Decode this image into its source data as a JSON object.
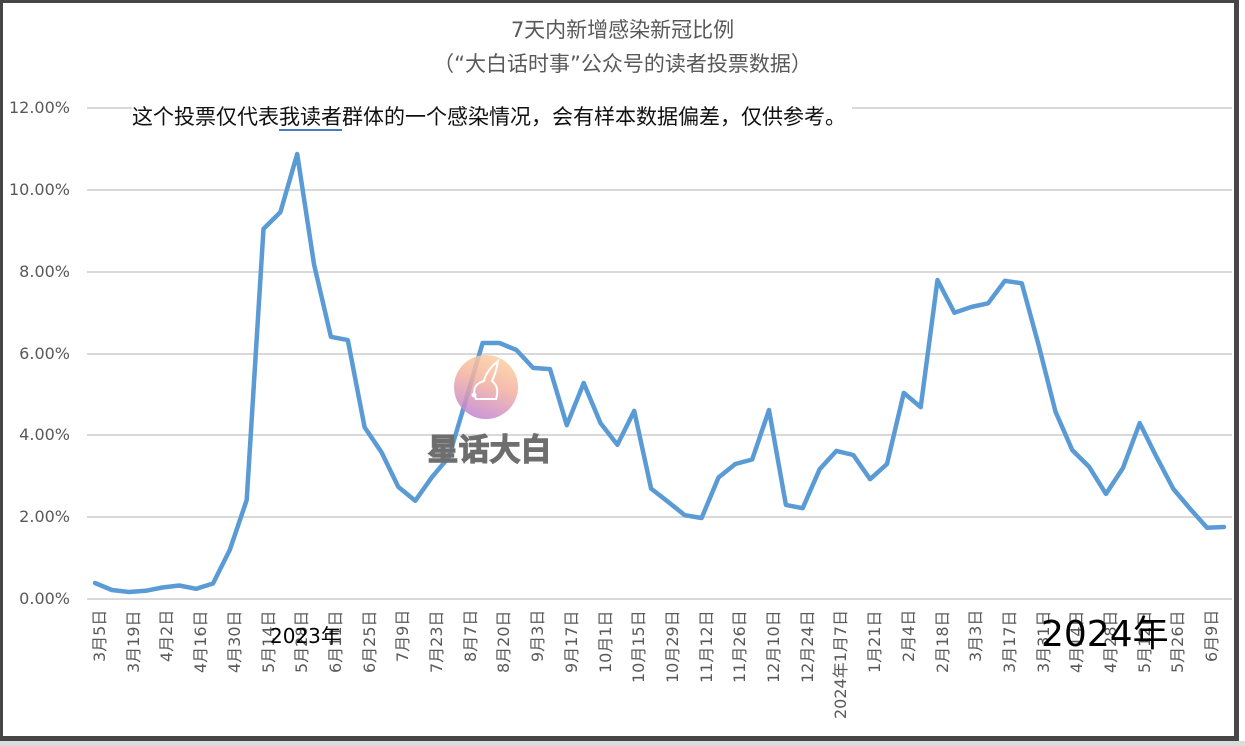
{
  "chart_data": {
    "type": "line",
    "title": "7天内新增感染新冠比例",
    "subtitle": "（“大白话时事”公众号的读者投票数据）",
    "xlabel": "",
    "ylabel": "",
    "ylim": [
      0,
      12
    ],
    "y_format": "percent",
    "grid": true,
    "legend": "none",
    "y_ticks": [
      "0.00%",
      "2.00%",
      "4.00%",
      "6.00%",
      "8.00%",
      "10.00%",
      "12.00%"
    ],
    "x_tick_labels": [
      "3月5日",
      "3月19日",
      "4月2日",
      "4月16日",
      "4月30日",
      "5月14日",
      "5月28日",
      "6月11日",
      "6月25日",
      "7月9日",
      "7月23日",
      "8月7日",
      "8月20日",
      "9月3日",
      "9月17日",
      "10月1日",
      "10月15日",
      "10月29日",
      "11月12日",
      "11月26日",
      "12月10日",
      "12月24日",
      "2024年1月7日",
      "1月21日",
      "2月4日",
      "2月18日",
      "3月3日",
      "3月17日",
      "3月31日",
      "4月14日",
      "4月28日",
      "5月12日",
      "5月26日",
      "6月9日"
    ],
    "series": [
      {
        "name": "7天内新增感染新冠比例",
        "color": "#5b9bd5",
        "values": [
          0.39,
          0.22,
          0.17,
          0.2,
          0.28,
          0.33,
          0.25,
          0.38,
          1.2,
          2.42,
          9.05,
          9.46,
          10.88,
          8.17,
          6.41,
          6.33,
          4.2,
          3.59,
          2.74,
          2.4,
          2.98,
          3.47,
          4.85,
          6.26,
          6.26,
          6.09,
          5.65,
          5.62,
          4.25,
          5.28,
          4.3,
          3.77,
          4.6,
          2.7,
          2.38,
          2.05,
          1.98,
          2.97,
          3.3,
          3.41,
          4.62,
          2.3,
          2.22,
          3.17,
          3.62,
          3.52,
          2.93,
          3.3,
          5.04,
          4.69,
          7.8,
          7.0,
          7.14,
          7.23,
          7.78,
          7.72,
          6.21,
          4.58,
          3.64,
          3.23,
          2.57,
          3.2,
          4.3,
          3.47,
          2.69,
          2.2,
          1.74,
          1.76
        ]
      }
    ],
    "annotations": [
      {
        "text_before": "这个投票仅代表",
        "text_underlined": "我读者",
        "text_after": "群体的一个感染情况，会有样本数据偏差，仅供参考。"
      },
      {
        "text": "2023年"
      },
      {
        "text": "2024年"
      }
    ]
  },
  "watermark": {
    "text": "星话大白"
  }
}
